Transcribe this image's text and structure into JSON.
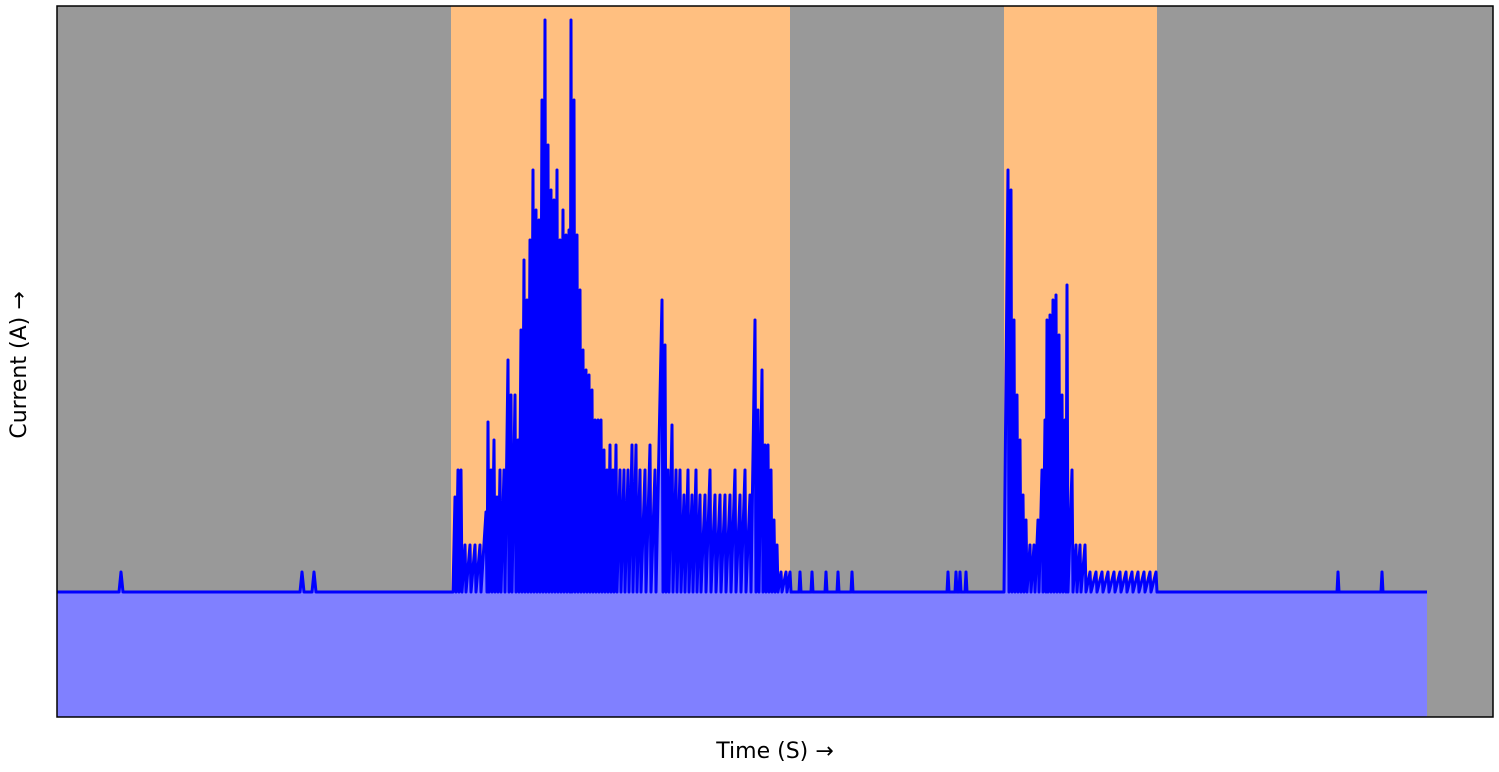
{
  "chart_data": {
    "type": "area-line",
    "xlabel": "Time (S) →",
    "ylabel": "Current (A) →",
    "xlim": [
      0,
      1436
    ],
    "ylim": [
      -125,
      586
    ],
    "line_color": "#0000ff",
    "fill_color": "#8080ff",
    "regions": [
      {
        "start": 0,
        "end": 394,
        "color": "#999999"
      },
      {
        "start": 394,
        "end": 733,
        "color": "#ffbf80"
      },
      {
        "start": 733,
        "end": 947,
        "color": "#999999"
      },
      {
        "start": 947,
        "end": 1100,
        "color": "#ffbf80"
      },
      {
        "start": 1100,
        "end": 1436,
        "color": "#999999"
      }
    ],
    "series": [
      {
        "x": [
          0,
          62,
          64,
          66,
          243,
          245,
          247,
          255,
          257,
          259,
          396,
          398,
          399,
          401,
          402,
          404,
          405,
          408,
          409,
          413,
          414,
          418,
          419,
          423,
          424,
          429,
          430,
          431,
          432,
          434,
          435,
          437,
          438,
          440,
          441,
          443,
          444,
          447,
          448,
          451,
          452,
          454,
          455,
          458,
          459,
          461,
          462,
          464,
          465,
          467,
          468,
          470,
          471,
          473,
          474,
          476,
          477,
          479,
          480,
          482,
          483,
          485,
          486,
          488,
          489,
          491,
          492,
          494,
          495,
          497,
          498,
          500,
          501,
          503,
          504,
          506,
          507,
          509,
          510,
          512,
          513,
          514,
          515,
          517,
          518,
          520,
          521,
          523,
          524,
          526,
          527,
          529,
          530,
          532,
          533,
          535,
          536,
          538,
          539,
          541,
          542,
          544,
          545,
          547,
          548,
          550,
          551,
          553,
          554,
          556,
          557,
          559,
          560,
          563,
          564,
          567,
          568,
          571,
          572,
          575,
          576,
          579,
          580,
          583,
          584,
          588,
          589,
          593,
          594,
          598,
          599,
          605,
          606,
          608,
          609,
          611,
          612,
          615,
          616,
          619,
          620,
          623,
          624,
          627,
          628,
          631,
          632,
          635,
          636,
          639,
          640,
          643,
          644,
          648,
          649,
          653,
          654,
          658,
          659,
          663,
          664,
          668,
          669,
          673,
          674,
          678,
          679,
          683,
          684,
          688,
          689,
          693,
          694,
          698,
          699,
          701,
          702,
          705,
          706,
          708,
          709,
          711,
          712,
          714,
          715,
          717,
          718,
          720,
          721,
          724,
          725,
          729,
          730,
          733,
          734,
          742,
          743,
          744,
          754,
          755,
          756,
          768,
          769,
          770,
          780,
          781,
          782,
          794,
          795,
          796,
          890,
          891,
          892,
          898,
          899,
          900,
          902,
          903,
          904,
          908,
          909,
          910,
          947,
          951,
          952,
          954,
          955,
          957,
          958,
          960,
          961,
          963,
          964,
          966,
          967,
          969,
          970,
          973,
          974,
          977,
          978,
          981,
          982,
          985,
          986,
          988,
          989,
          990,
          991,
          993,
          994,
          996,
          997,
          999,
          1000,
          1002,
          1003,
          1005,
          1006,
          1008,
          1009,
          1010,
          1011,
          1015,
          1016,
          1019,
          1020,
          1023,
          1024,
          1028,
          1029,
          1033,
          1034,
          1039,
          1040,
          1045,
          1046,
          1051,
          1052,
          1057,
          1058,
          1063,
          1064,
          1069,
          1070,
          1075,
          1076,
          1081,
          1082,
          1087,
          1088,
          1093,
          1094,
          1099,
          1100,
          1280,
          1281,
          1282,
          1324,
          1325,
          1326,
          1370
        ],
        "values": [
          0,
          0,
          20,
          0,
          0,
          20,
          0,
          0,
          20,
          0,
          0,
          95,
          0,
          122,
          0,
          122,
          0,
          47,
          0,
          47,
          0,
          47,
          0,
          47,
          0,
          80,
          0,
          170,
          0,
          122,
          0,
          152,
          0,
          95,
          0,
          122,
          0,
          122,
          0,
          232,
          0,
          197,
          0,
          197,
          0,
          152,
          0,
          262,
          0,
          332,
          0,
          292,
          0,
          352,
          0,
          422,
          0,
          382,
          0,
          372,
          0,
          492,
          0,
          572,
          0,
          447,
          0,
          402,
          0,
          392,
          0,
          422,
          0,
          352,
          0,
          382,
          0,
          357,
          0,
          362,
          0,
          572,
          0,
          492,
          0,
          357,
          0,
          302,
          0,
          242,
          0,
          222,
          0,
          217,
          0,
          202,
          0,
          172,
          0,
          172,
          0,
          172,
          0,
          142,
          0,
          122,
          0,
          147,
          0,
          122,
          0,
          147,
          0,
          122,
          0,
          122,
          0,
          122,
          0,
          147,
          0,
          147,
          0,
          122,
          0,
          122,
          0,
          147,
          0,
          122,
          0,
          292,
          0,
          247,
          0,
          122,
          0,
          167,
          0,
          122,
          0,
          122,
          0,
          97,
          0,
          122,
          0,
          97,
          0,
          122,
          0,
          97,
          0,
          97,
          0,
          122,
          0,
          97,
          0,
          97,
          0,
          97,
          0,
          97,
          0,
          122,
          0,
          97,
          0,
          122,
          0,
          97,
          0,
          272,
          0,
          182,
          0,
          222,
          0,
          147,
          0,
          147,
          0,
          122,
          0,
          72,
          0,
          47,
          0,
          20,
          0,
          20,
          0,
          20,
          0,
          0,
          20,
          0,
          0,
          20,
          0,
          0,
          20,
          0,
          0,
          20,
          0,
          0,
          20,
          0,
          0,
          20,
          0,
          0,
          20,
          0,
          0,
          20,
          0,
          0,
          20,
          0,
          0,
          422,
          0,
          402,
          0,
          272,
          0,
          197,
          0,
          152,
          0,
          97,
          0,
          72,
          0,
          47,
          0,
          47,
          0,
          72,
          0,
          122,
          0,
          172,
          0,
          272,
          0,
          277,
          0,
          292,
          0,
          297,
          0,
          257,
          0,
          197,
          0,
          172,
          0,
          307,
          0,
          122,
          0,
          47,
          0,
          47,
          0,
          47,
          0,
          20,
          0,
          20,
          0,
          20,
          0,
          20,
          0,
          20,
          0,
          20,
          0,
          20,
          0,
          20,
          0,
          20,
          0,
          20,
          0,
          20,
          0,
          20,
          0,
          0,
          20,
          0,
          0,
          20,
          0,
          0
        ]
      }
    ]
  }
}
